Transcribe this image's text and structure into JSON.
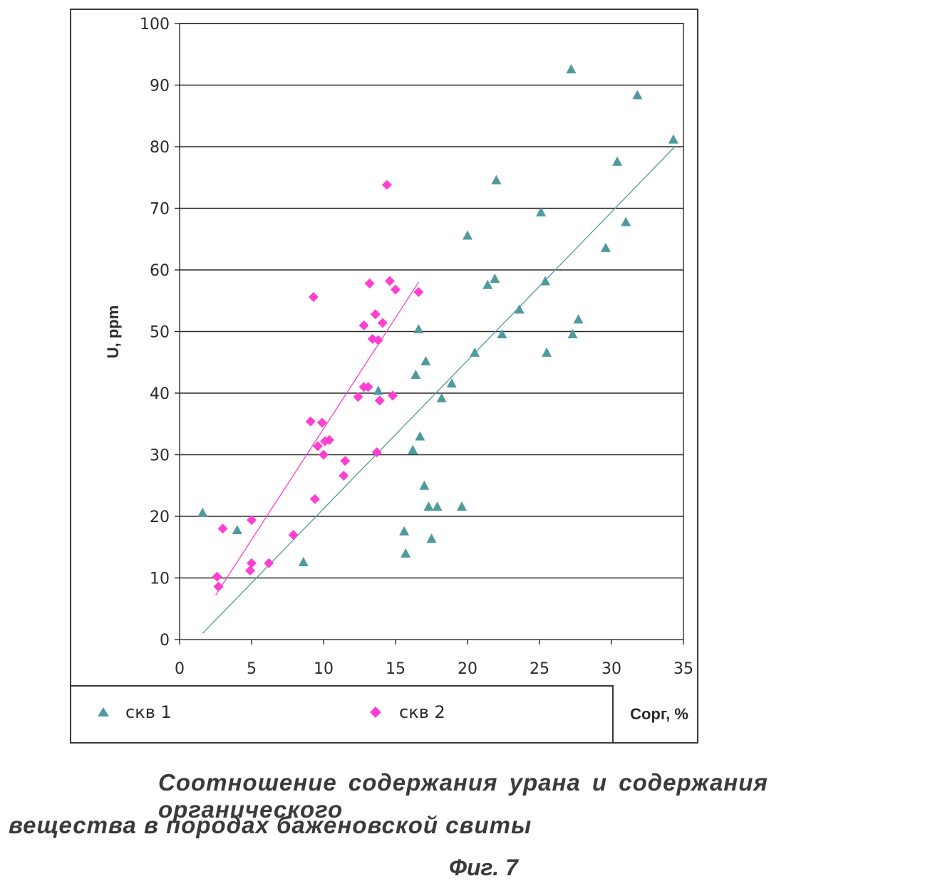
{
  "chart_data": {
    "type": "scatter",
    "xlabel": "Сорг, %",
    "ylabel": "U, ppm",
    "xlim": [
      0,
      35
    ],
    "ylim": [
      0,
      100
    ],
    "xticks": [
      "0",
      "5",
      "10",
      "15",
      "20",
      "25",
      "30",
      "35"
    ],
    "yticks": [
      "0",
      "10",
      "20",
      "30",
      "40",
      "50",
      "60",
      "70",
      "80",
      "90",
      "100"
    ],
    "grid": "horizontal",
    "legend_position": "bottom",
    "series": [
      {
        "name": "скв 1",
        "marker": "triangle",
        "color": "#4f9a9c",
        "points": [
          [
            1.6,
            20.6
          ],
          [
            4.0,
            17.8
          ],
          [
            8.6,
            12.6
          ],
          [
            13.8,
            40.4
          ],
          [
            15.6,
            17.6
          ],
          [
            15.7,
            14.0
          ],
          [
            16.2,
            30.8
          ],
          [
            16.4,
            43.0
          ],
          [
            16.6,
            50.4
          ],
          [
            16.7,
            33.0
          ],
          [
            17.0,
            25.0
          ],
          [
            17.1,
            45.2
          ],
          [
            17.3,
            21.6
          ],
          [
            17.5,
            16.4
          ],
          [
            17.9,
            21.6
          ],
          [
            18.2,
            39.2
          ],
          [
            18.9,
            41.6
          ],
          [
            19.6,
            21.6
          ],
          [
            20.0,
            65.6
          ],
          [
            20.5,
            46.6
          ],
          [
            21.4,
            57.6
          ],
          [
            21.9,
            58.6
          ],
          [
            22.0,
            74.6
          ],
          [
            22.4,
            49.6
          ],
          [
            23.6,
            53.6
          ],
          [
            25.1,
            69.4
          ],
          [
            25.4,
            58.2
          ],
          [
            25.5,
            46.6
          ],
          [
            27.2,
            92.6
          ],
          [
            27.3,
            49.6
          ],
          [
            27.7,
            52.0
          ],
          [
            29.6,
            63.6
          ],
          [
            30.4,
            77.6
          ],
          [
            31.0,
            67.8
          ],
          [
            31.8,
            88.4
          ],
          [
            34.3,
            81.2
          ]
        ],
        "trendline": [
          [
            1.6,
            1.0
          ],
          [
            34.4,
            80.0
          ]
        ]
      },
      {
        "name": "скв 2",
        "marker": "diamond",
        "color": "#ff3fd0",
        "points": [
          [
            2.6,
            10.2
          ],
          [
            2.7,
            8.6
          ],
          [
            3.0,
            18.0
          ],
          [
            5.0,
            19.4
          ],
          [
            5.0,
            12.4
          ],
          [
            4.9,
            11.2
          ],
          [
            6.2,
            12.4
          ],
          [
            7.9,
            17.0
          ],
          [
            9.1,
            35.4
          ],
          [
            9.3,
            55.6
          ],
          [
            9.4,
            22.8
          ],
          [
            9.6,
            31.4
          ],
          [
            9.9,
            35.2
          ],
          [
            10.0,
            30.0
          ],
          [
            10.1,
            32.2
          ],
          [
            10.4,
            32.4
          ],
          [
            11.4,
            26.6
          ],
          [
            11.5,
            29.0
          ],
          [
            12.4,
            39.4
          ],
          [
            12.8,
            51.0
          ],
          [
            12.8,
            41.0
          ],
          [
            13.1,
            41.0
          ],
          [
            13.2,
            57.8
          ],
          [
            13.4,
            48.8
          ],
          [
            13.6,
            52.8
          ],
          [
            13.7,
            30.4
          ],
          [
            13.8,
            48.6
          ],
          [
            13.9,
            38.8
          ],
          [
            14.1,
            51.4
          ],
          [
            14.4,
            73.8
          ],
          [
            14.6,
            58.2
          ],
          [
            14.8,
            39.6
          ],
          [
            15.0,
            56.8
          ],
          [
            16.6,
            56.4
          ]
        ],
        "trendline": [
          [
            2.5,
            7.2
          ],
          [
            16.6,
            58.0
          ]
        ]
      }
    ]
  },
  "caption": {
    "line1": "Соотношение содержания урана и содержания органического",
    "line2": "вещества в породах баженовской свиты",
    "figure_number": "Фиг. 7"
  }
}
